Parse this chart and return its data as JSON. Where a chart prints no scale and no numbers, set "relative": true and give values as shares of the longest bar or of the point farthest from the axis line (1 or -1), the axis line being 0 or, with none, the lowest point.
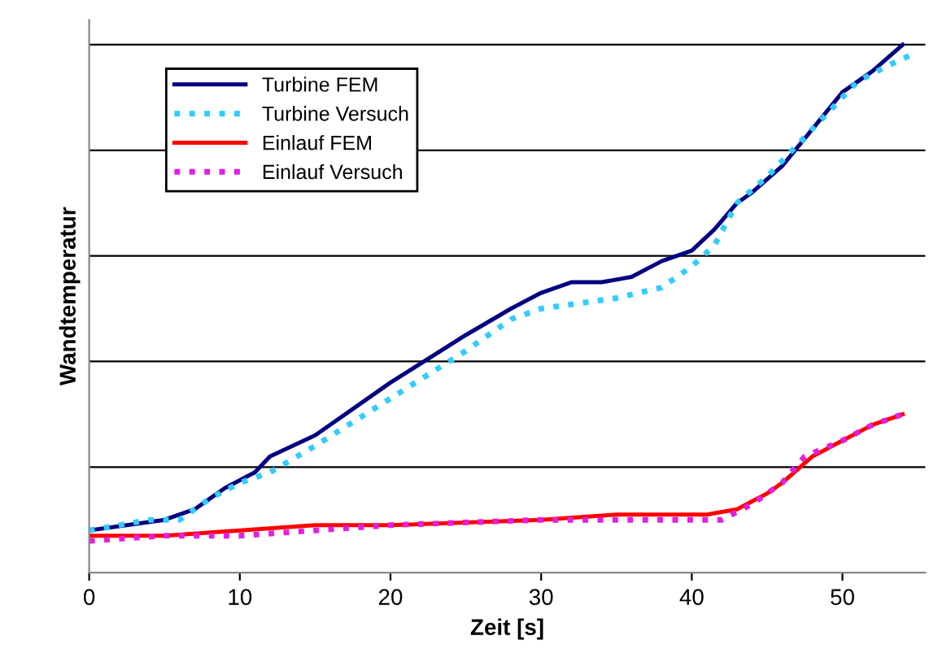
{
  "chart_data": {
    "type": "line",
    "relative": true,
    "xlabel": "Zeit [s]",
    "ylabel": "Wandtemperatur",
    "xlim": [
      0,
      55.5
    ],
    "xticks": [
      0,
      10,
      20,
      30,
      40,
      50
    ],
    "grid": "y",
    "legend": "top left",
    "marker": "none",
    "series": [
      {
        "name": "Turbine FEM",
        "color": "#000080",
        "line_style": "solid",
        "x": [
          0,
          5,
          7,
          9,
          11,
          12,
          15,
          20,
          25,
          28,
          30,
          32,
          34,
          36,
          38,
          40,
          41.5,
          43,
          44,
          46,
          48,
          50,
          52,
          54
        ],
        "values": [
          0.08,
          0.1,
          0.12,
          0.16,
          0.19,
          0.22,
          0.26,
          0.36,
          0.45,
          0.5,
          0.53,
          0.55,
          0.55,
          0.56,
          0.59,
          0.61,
          0.65,
          0.7,
          0.72,
          0.77,
          0.84,
          0.91,
          0.95,
          1
        ]
      },
      {
        "name": "Turbine Versuch",
        "color": "#33ccff",
        "line_style": "dotted",
        "x": [
          0,
          4,
          6,
          8,
          10,
          12,
          15,
          20,
          25,
          28,
          30,
          35,
          38,
          40,
          41.5,
          43,
          45,
          47,
          49,
          51,
          53,
          54.5
        ],
        "values": [
          0.08,
          0.1,
          0.1,
          0.14,
          0.17,
          0.19,
          0.24,
          0.33,
          0.42,
          0.48,
          0.5,
          0.52,
          0.54,
          0.58,
          0.62,
          0.7,
          0.75,
          0.81,
          0.87,
          0.93,
          0.96,
          0.98
        ]
      },
      {
        "name": "Einlauf FEM",
        "color": "#ff0000",
        "line_style": "solid",
        "x": [
          0,
          5,
          10,
          15,
          20,
          30,
          35,
          41,
          43,
          45,
          46,
          48,
          50,
          52,
          54
        ],
        "values": [
          0.07,
          0.07,
          0.08,
          0.09,
          0.09,
          0.1,
          0.11,
          0.11,
          0.12,
          0.15,
          0.17,
          0.22,
          0.25,
          0.28,
          0.3
        ]
      },
      {
        "name": "Einlauf Versuch",
        "color": "#e020e0",
        "line_style": "dotted",
        "x": [
          0,
          5,
          10,
          15,
          20,
          30,
          35,
          42,
          44,
          46,
          47.5,
          50,
          52,
          54
        ],
        "values": [
          0.06,
          0.07,
          0.07,
          0.08,
          0.09,
          0.1,
          0.1,
          0.1,
          0.13,
          0.17,
          0.22,
          0.25,
          0.28,
          0.3
        ]
      }
    ]
  }
}
